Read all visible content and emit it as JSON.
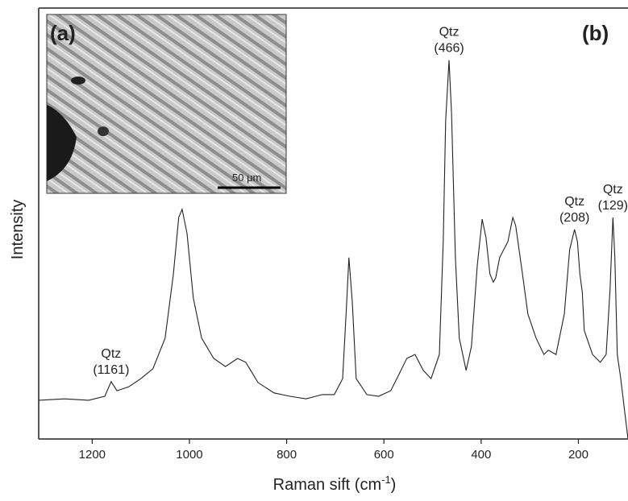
{
  "chart_data": {
    "type": "line",
    "panel_label": "(b)",
    "x_label": "Raman sift (cm",
    "x_label_sup": "-1",
    "x_label_end": ")",
    "y_label": "Intensity",
    "color": "#222222",
    "xlim": [
      1310,
      98
    ],
    "ylim": [
      0,
      100
    ],
    "xticks": [
      1200,
      1000,
      800,
      600,
      400,
      200
    ],
    "x": [
      1309,
      1257,
      1207,
      1174,
      1161,
      1149,
      1125,
      1100,
      1075,
      1050,
      1033,
      1022,
      1015,
      1005,
      992,
      975,
      950,
      926,
      901,
      884,
      859,
      826,
      793,
      760,
      727,
      702,
      685,
      677,
      672,
      665,
      657,
      635,
      611,
      586,
      569,
      553,
      536,
      519,
      503,
      486,
      478,
      473,
      466,
      461,
      453,
      445,
      431,
      420,
      408,
      398,
      390,
      382,
      375,
      370,
      362,
      345,
      335,
      329,
      315,
      304,
      287,
      271,
      262,
      246,
      229,
      218,
      208,
      202,
      197,
      192,
      188,
      171,
      155,
      143,
      135,
      129,
      125,
      120,
      113,
      98
    ],
    "values": [
      9.0,
      9.3,
      9.0,
      9.9,
      13.3,
      11.2,
      12.1,
      14.0,
      16.3,
      23.4,
      38.3,
      51.4,
      53.3,
      47.7,
      32.7,
      23.4,
      18.7,
      16.8,
      18.7,
      17.8,
      13.1,
      10.7,
      9.9,
      9.3,
      10.3,
      10.3,
      14.0,
      30.8,
      42.1,
      31.8,
      14.0,
      10.3,
      9.9,
      11.2,
      15.0,
      18.7,
      19.6,
      15.9,
      14.0,
      19.6,
      45.8,
      73.8,
      87.9,
      75.7,
      42.1,
      23.4,
      15.9,
      21.5,
      40.2,
      51.0,
      46.7,
      38.3,
      36.4,
      37.4,
      42.1,
      45.8,
      51.4,
      49.5,
      38.3,
      29.0,
      23.4,
      19.6,
      20.6,
      19.6,
      29.0,
      43.9,
      48.6,
      45.8,
      38.3,
      34.1,
      25.2,
      19.6,
      17.8,
      19.6,
      34.6,
      51.4,
      42.1,
      19.6,
      14.0,
      0
    ],
    "annotations": [
      {
        "x": 1161,
        "lines": [
          "Qtz",
          "(1161)"
        ]
      },
      {
        "x": 466,
        "lines": [
          "Qtz",
          "(466)"
        ]
      },
      {
        "x": 208,
        "lines": [
          "Qtz",
          "(208)"
        ]
      },
      {
        "x": 129,
        "lines": [
          "Qtz",
          "(129)"
        ]
      }
    ],
    "inset": {
      "label": "(a)",
      "scale_bar": "50 μm"
    }
  }
}
